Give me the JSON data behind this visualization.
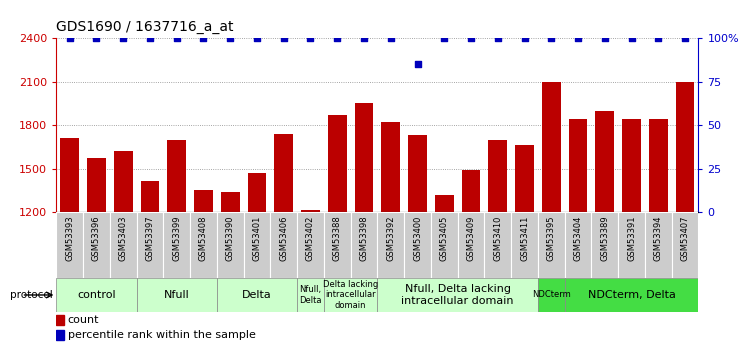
{
  "title": "GDS1690 / 1637716_a_at",
  "samples": [
    "GSM53393",
    "GSM53396",
    "GSM53403",
    "GSM53397",
    "GSM53399",
    "GSM53408",
    "GSM53390",
    "GSM53401",
    "GSM53406",
    "GSM53402",
    "GSM53388",
    "GSM53398",
    "GSM53392",
    "GSM53400",
    "GSM53405",
    "GSM53409",
    "GSM53410",
    "GSM53411",
    "GSM53395",
    "GSM53404",
    "GSM53389",
    "GSM53391",
    "GSM53394",
    "GSM53407"
  ],
  "counts": [
    1710,
    1575,
    1620,
    1415,
    1700,
    1355,
    1340,
    1470,
    1740,
    1215,
    1870,
    1950,
    1820,
    1730,
    1320,
    1490,
    1700,
    1665,
    2100,
    1840,
    1895,
    1845,
    1840,
    2100
  ],
  "percentiles": [
    100,
    100,
    100,
    100,
    100,
    100,
    100,
    100,
    100,
    100,
    100,
    100,
    100,
    85,
    100,
    100,
    100,
    100,
    100,
    100,
    100,
    100,
    100,
    100
  ],
  "ylim_left": [
    1200,
    2400
  ],
  "ylim_right": [
    0,
    100
  ],
  "yticks_left": [
    1200,
    1500,
    1800,
    2100,
    2400
  ],
  "yticks_right": [
    0,
    25,
    50,
    75,
    100
  ],
  "bar_color": "#bb0000",
  "dot_color": "#0000bb",
  "groups": [
    {
      "label": "control",
      "start": 0,
      "end": 3,
      "color": "#ccffcc"
    },
    {
      "label": "Nfull",
      "start": 3,
      "end": 6,
      "color": "#ccffcc"
    },
    {
      "label": "Delta",
      "start": 6,
      "end": 9,
      "color": "#ccffcc"
    },
    {
      "label": "Nfull,\nDelta",
      "start": 9,
      "end": 10,
      "color": "#ccffcc"
    },
    {
      "label": "Delta lacking\nintracellular\ndomain",
      "start": 10,
      "end": 12,
      "color": "#ccffcc"
    },
    {
      "label": "Nfull, Delta lacking\nintracellular domain",
      "start": 12,
      "end": 18,
      "color": "#ccffcc"
    },
    {
      "label": "NDCterm",
      "start": 18,
      "end": 19,
      "color": "#44dd44"
    },
    {
      "label": "NDCterm, Delta",
      "start": 19,
      "end": 24,
      "color": "#44dd44"
    }
  ],
  "bg_color": "#ffffff",
  "tick_label_color_left": "#cc0000",
  "tick_label_color_right": "#0000cc",
  "xtick_bg": "#cccccc"
}
